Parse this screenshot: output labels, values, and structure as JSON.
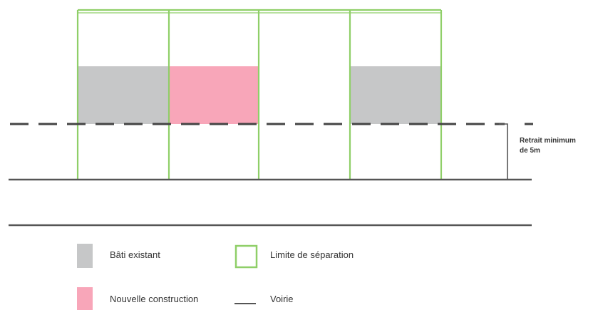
{
  "annotation": {
    "line1": "Retrait minimum",
    "line2": "de 5m"
  },
  "legend": {
    "existing_label": "Bâti existant",
    "new_label": "Nouvelle construction",
    "boundary_label": "Limite de séparation",
    "road_label": "Voirie"
  },
  "colors": {
    "existing": "#c6c7c8",
    "new": "#f8a6b9",
    "boundary": "#8fcf68",
    "road": "#555555",
    "setback": "#444444"
  }
}
